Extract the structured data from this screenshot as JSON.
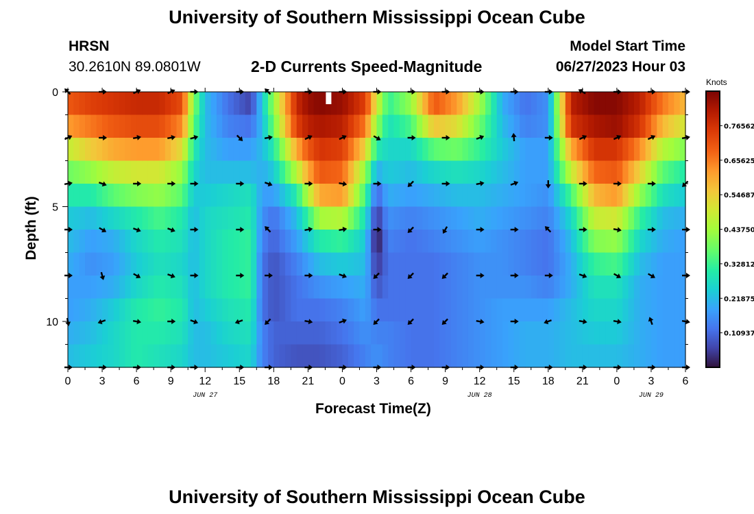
{
  "page": {
    "title": "University of Southern Mississippi Ocean Cube",
    "title_repeat": "University of Southern Mississippi Ocean Cube"
  },
  "header": {
    "station": "HRSN",
    "coords": "30.2610N  89.0801W",
    "model_start_label": "Model Start Time",
    "model_start_value": "06/27/2023 Hour 03"
  },
  "chart_data": {
    "type": "heatmap",
    "title": "2-D Currents Speed-Magnitude",
    "xlabel": "Forecast Time(Z)",
    "ylabel": "Depth (ft)",
    "x_tick_labels": [
      "0",
      "3",
      "6",
      "9",
      "12",
      "15",
      "18",
      "21",
      "0",
      "3",
      "6",
      "9",
      "12",
      "15",
      "18",
      "21",
      "0",
      "3",
      "6"
    ],
    "x_date_labels": [
      "JUN 27",
      "JUN 28",
      "JUN 29"
    ],
    "y_tick_labels": [
      "0",
      "5",
      "10"
    ],
    "ylim": [
      0,
      12
    ],
    "x_range_hours": [
      0,
      54
    ],
    "colorbar": {
      "label": "Knots",
      "range": [
        0,
        0.875
      ],
      "tick_labels": [
        "0.76562",
        "0.65625",
        "0.54687",
        "0.43750",
        "0.32812",
        "0.21875",
        "0.10937"
      ],
      "tick_values": [
        0.76562,
        0.65625,
        0.54687,
        0.4375,
        0.32812,
        0.21875,
        0.10937
      ]
    },
    "depth_profile_rows": [
      0.5,
      1.5,
      2.5,
      3.5,
      4.5,
      5.5,
      6.5,
      7.5,
      8.5,
      9.5,
      10.5,
      11.5
    ],
    "speed_knots_by_hour": {
      "hours": [
        0,
        2,
        4,
        6,
        8,
        10,
        11,
        12,
        14,
        16,
        17,
        18,
        20,
        21,
        22,
        24,
        26,
        27,
        28,
        30,
        32,
        34,
        36,
        38,
        40,
        42,
        44,
        46,
        48,
        50,
        52,
        54
      ],
      "note": "each entry: speeds (knots) from surface (row 0) to bottom (row 11)",
      "profiles": [
        [
          0.7,
          0.62,
          0.48,
          0.38,
          0.3,
          0.24,
          0.22,
          0.2,
          0.18,
          0.18,
          0.2,
          0.22
        ],
        [
          0.74,
          0.66,
          0.55,
          0.42,
          0.3,
          0.22,
          0.18,
          0.16,
          0.18,
          0.2,
          0.22,
          0.24
        ],
        [
          0.76,
          0.7,
          0.6,
          0.48,
          0.36,
          0.26,
          0.2,
          0.18,
          0.2,
          0.24,
          0.26,
          0.26
        ],
        [
          0.78,
          0.72,
          0.62,
          0.5,
          0.4,
          0.3,
          0.26,
          0.24,
          0.26,
          0.3,
          0.3,
          0.3
        ],
        [
          0.78,
          0.72,
          0.62,
          0.5,
          0.42,
          0.34,
          0.3,
          0.28,
          0.3,
          0.32,
          0.3,
          0.28
        ],
        [
          0.72,
          0.64,
          0.52,
          0.42,
          0.36,
          0.3,
          0.28,
          0.26,
          0.28,
          0.3,
          0.28,
          0.26
        ],
        [
          0.4,
          0.36,
          0.3,
          0.26,
          0.24,
          0.22,
          0.22,
          0.22,
          0.22,
          0.22,
          0.22,
          0.22
        ],
        [
          0.22,
          0.22,
          0.22,
          0.22,
          0.24,
          0.26,
          0.26,
          0.26,
          0.26,
          0.24,
          0.22,
          0.22
        ],
        [
          0.12,
          0.14,
          0.18,
          0.22,
          0.26,
          0.28,
          0.3,
          0.3,
          0.3,
          0.28,
          0.26,
          0.24
        ],
        [
          0.06,
          0.12,
          0.18,
          0.22,
          0.28,
          0.3,
          0.32,
          0.32,
          0.32,
          0.3,
          0.28,
          0.26
        ],
        [
          0.24,
          0.22,
          0.22,
          0.2,
          0.18,
          0.16,
          0.14,
          0.12,
          0.12,
          0.12,
          0.14,
          0.14
        ],
        [
          0.42,
          0.38,
          0.3,
          0.24,
          0.18,
          0.12,
          0.1,
          0.08,
          0.08,
          0.08,
          0.1,
          0.1
        ],
        [
          0.78,
          0.74,
          0.6,
          0.46,
          0.3,
          0.22,
          0.18,
          0.14,
          0.12,
          0.12,
          0.1,
          0.08
        ],
        [
          0.84,
          0.8,
          0.7,
          0.6,
          0.46,
          0.32,
          0.24,
          0.18,
          0.14,
          0.12,
          0.1,
          0.08
        ],
        [
          0.86,
          0.82,
          0.76,
          0.7,
          0.6,
          0.44,
          0.3,
          0.22,
          0.16,
          0.12,
          0.1,
          0.08
        ],
        [
          0.84,
          0.8,
          0.74,
          0.68,
          0.62,
          0.46,
          0.32,
          0.24,
          0.18,
          0.14,
          0.12,
          0.1
        ],
        [
          0.74,
          0.66,
          0.54,
          0.42,
          0.34,
          0.28,
          0.24,
          0.22,
          0.2,
          0.18,
          0.16,
          0.14
        ],
        [
          0.5,
          0.42,
          0.3,
          0.2,
          0.1,
          0.04,
          0.0,
          0.04,
          0.08,
          0.12,
          0.14,
          0.16
        ],
        [
          0.32,
          0.28,
          0.26,
          0.24,
          0.2,
          0.16,
          0.14,
          0.12,
          0.12,
          0.12,
          0.14,
          0.14
        ],
        [
          0.42,
          0.34,
          0.26,
          0.22,
          0.18,
          0.14,
          0.12,
          0.12,
          0.12,
          0.12,
          0.12,
          0.12
        ],
        [
          0.7,
          0.56,
          0.36,
          0.26,
          0.2,
          0.16,
          0.14,
          0.12,
          0.12,
          0.12,
          0.12,
          0.12
        ],
        [
          0.62,
          0.52,
          0.38,
          0.28,
          0.22,
          0.18,
          0.16,
          0.14,
          0.14,
          0.14,
          0.14,
          0.14
        ],
        [
          0.44,
          0.38,
          0.32,
          0.26,
          0.22,
          0.2,
          0.18,
          0.16,
          0.16,
          0.16,
          0.16,
          0.16
        ],
        [
          0.2,
          0.22,
          0.24,
          0.22,
          0.2,
          0.18,
          0.16,
          0.16,
          0.16,
          0.18,
          0.18,
          0.18
        ],
        [
          0.12,
          0.14,
          0.18,
          0.18,
          0.18,
          0.16,
          0.14,
          0.14,
          0.16,
          0.18,
          0.2,
          0.2
        ],
        [
          0.16,
          0.16,
          0.18,
          0.18,
          0.16,
          0.14,
          0.12,
          0.12,
          0.14,
          0.18,
          0.2,
          0.2
        ],
        [
          0.8,
          0.76,
          0.6,
          0.48,
          0.34,
          0.26,
          0.22,
          0.2,
          0.2,
          0.22,
          0.22,
          0.22
        ],
        [
          0.86,
          0.82,
          0.76,
          0.68,
          0.58,
          0.48,
          0.4,
          0.32,
          0.28,
          0.26,
          0.24,
          0.22
        ],
        [
          0.86,
          0.84,
          0.76,
          0.7,
          0.62,
          0.5,
          0.42,
          0.34,
          0.28,
          0.26,
          0.24,
          0.22
        ],
        [
          0.8,
          0.76,
          0.64,
          0.54,
          0.42,
          0.32,
          0.26,
          0.22,
          0.2,
          0.2,
          0.2,
          0.2
        ],
        [
          0.66,
          0.58,
          0.46,
          0.36,
          0.28,
          0.22,
          0.2,
          0.18,
          0.18,
          0.18,
          0.18,
          0.18
        ],
        [
          0.58,
          0.5,
          0.4,
          0.3,
          0.24,
          0.2,
          0.18,
          0.18,
          0.18,
          0.18,
          0.18,
          0.18
        ]
      ]
    },
    "vector_depths_ft": [
      0,
      2,
      4,
      6,
      8,
      10,
      12
    ],
    "vector_hours": [
      0,
      3,
      6,
      9,
      11,
      15,
      17.5,
      21,
      24,
      27,
      30,
      33,
      36,
      39,
      42,
      45,
      48,
      51,
      54
    ],
    "vector_directions_deg": [
      [
        135,
        0,
        25,
        25,
        0,
        0,
        135,
        0,
        0,
        0,
        0,
        0,
        0,
        0,
        0,
        150,
        0,
        0,
        0
      ],
      [
        25,
        0,
        10,
        10,
        15,
        -45,
        10,
        25,
        25,
        -30,
        0,
        0,
        20,
        95,
        0,
        25,
        25,
        25,
        10
      ],
      [
        10,
        -20,
        0,
        0,
        0,
        0,
        -20,
        0,
        -10,
        0,
        -135,
        0,
        10,
        20,
        -90,
        0,
        0,
        0,
        -135
      ],
      [
        0,
        -30,
        -20,
        -20,
        0,
        0,
        135,
        10,
        10,
        0,
        -135,
        -120,
        0,
        0,
        135,
        0,
        -10,
        0,
        0
      ],
      [
        0,
        -75,
        -30,
        -20,
        0,
        0,
        0,
        0,
        -20,
        -135,
        -135,
        -135,
        0,
        0,
        0,
        -20,
        -30,
        -30,
        0
      ],
      [
        -80,
        -160,
        -10,
        0,
        -20,
        -160,
        -135,
        -10,
        20,
        -135,
        -135,
        -135,
        -10,
        0,
        -160,
        -10,
        -10,
        110,
        -10
      ],
      [
        0,
        0,
        0,
        0,
        0,
        0,
        0,
        0,
        0,
        0,
        0,
        0,
        0,
        0,
        0,
        0,
        0,
        0,
        0
      ]
    ],
    "missing_value_marker_hour": 22.8
  },
  "colors": {
    "frame": "#000000",
    "background": "#ffffff"
  }
}
